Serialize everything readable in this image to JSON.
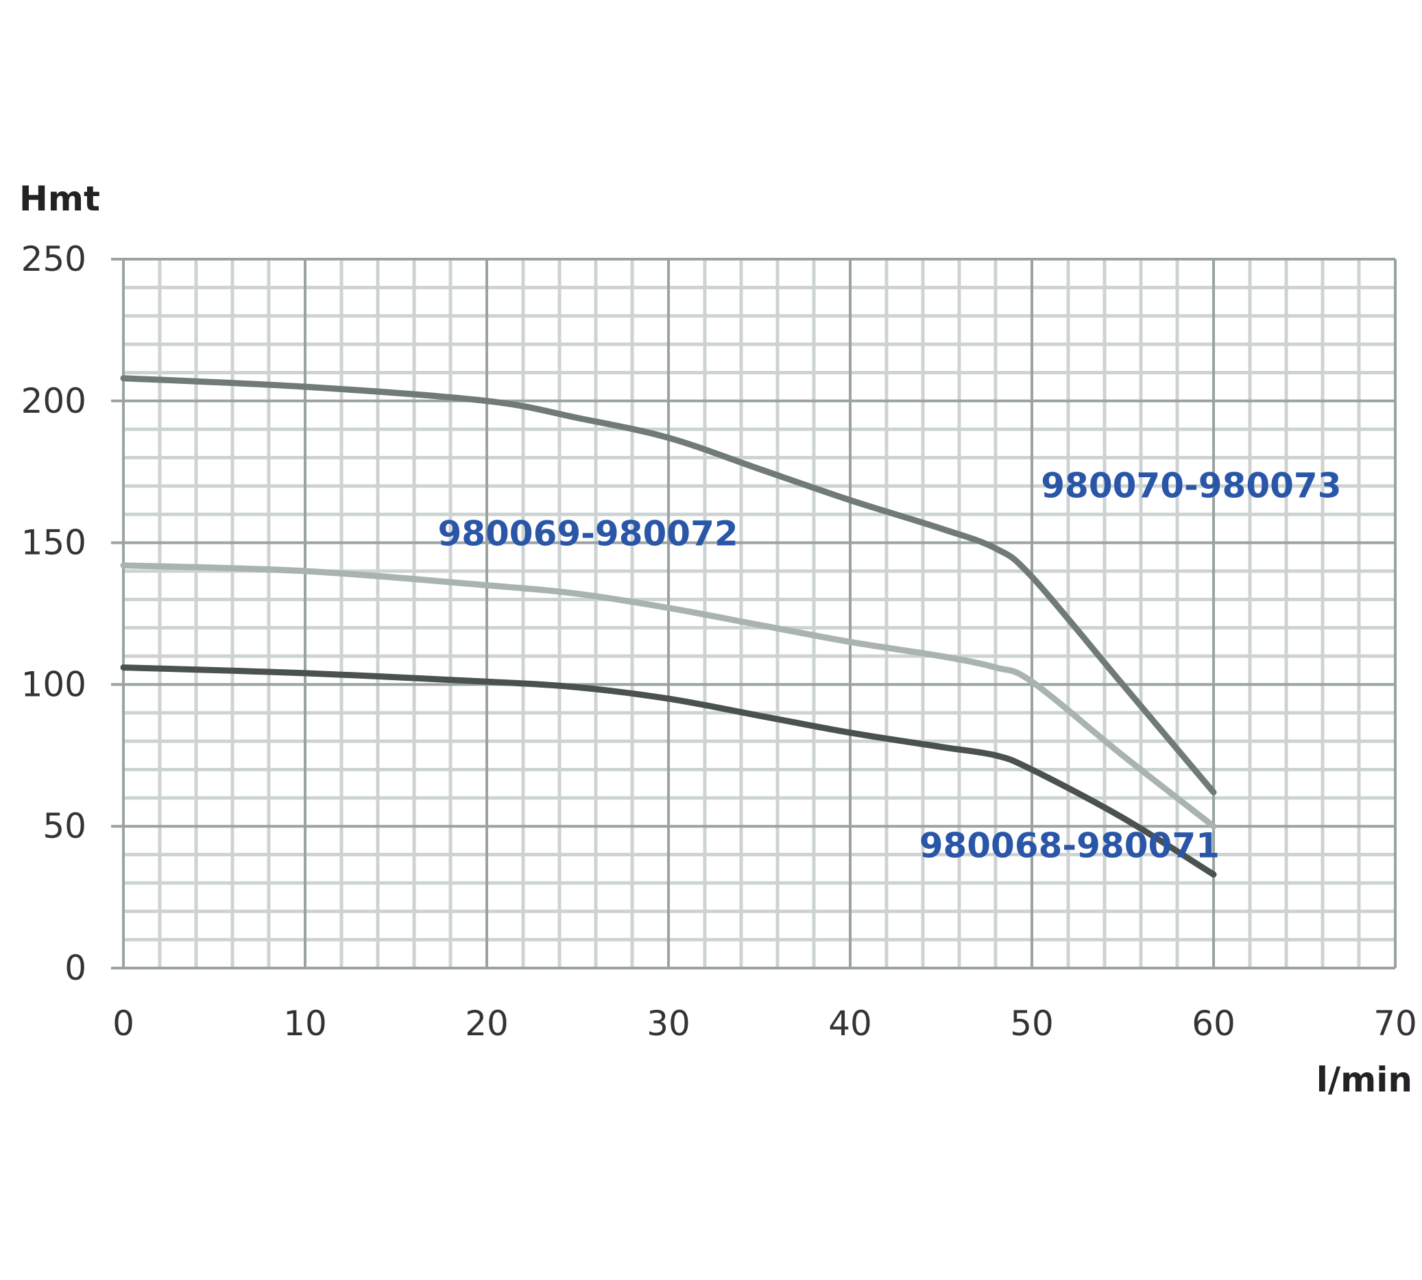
{
  "chart_data": {
    "type": "line",
    "title": "",
    "xlabel": "l/min",
    "ylabel": "Hmt",
    "xlim": [
      0,
      70
    ],
    "ylim": [
      0,
      250
    ],
    "x_ticks": [
      "0",
      "10",
      "20",
      "30",
      "40",
      "50",
      "60",
      "70"
    ],
    "y_ticks": [
      "0",
      "50",
      "100",
      "150",
      "200",
      "250"
    ],
    "grid": true,
    "series": [
      {
        "name": "980070-980073",
        "color": "#707a78",
        "x": [
          0,
          10,
          20,
          25,
          30,
          35,
          40,
          45,
          48,
          50,
          55,
          60
        ],
        "y": [
          208,
          205,
          200,
          194,
          187,
          176,
          165,
          155,
          148,
          138,
          100,
          62
        ]
      },
      {
        "name": "980069-980072",
        "color": "#a9b4b2",
        "x": [
          0,
          10,
          20,
          25,
          30,
          35,
          40,
          45,
          48,
          50,
          55,
          60
        ],
        "y": [
          142,
          140,
          135,
          132,
          127,
          121,
          115,
          110,
          106,
          101,
          75,
          50
        ]
      },
      {
        "name": "980068-980071",
        "color": "#4a5250",
        "x": [
          0,
          10,
          20,
          25,
          30,
          35,
          40,
          45,
          48,
          50,
          55,
          60
        ],
        "y": [
          106,
          104,
          101,
          99,
          95,
          89,
          83,
          78,
          75,
          70,
          53,
          33
        ]
      }
    ],
    "annotations": [
      {
        "text": "980070-980073",
        "x": 50.5,
        "y": 166
      },
      {
        "text": "980069-980072",
        "x": 17.3,
        "y": 149
      },
      {
        "text": "980068-980071",
        "x": 43.8,
        "y": 39
      }
    ]
  }
}
